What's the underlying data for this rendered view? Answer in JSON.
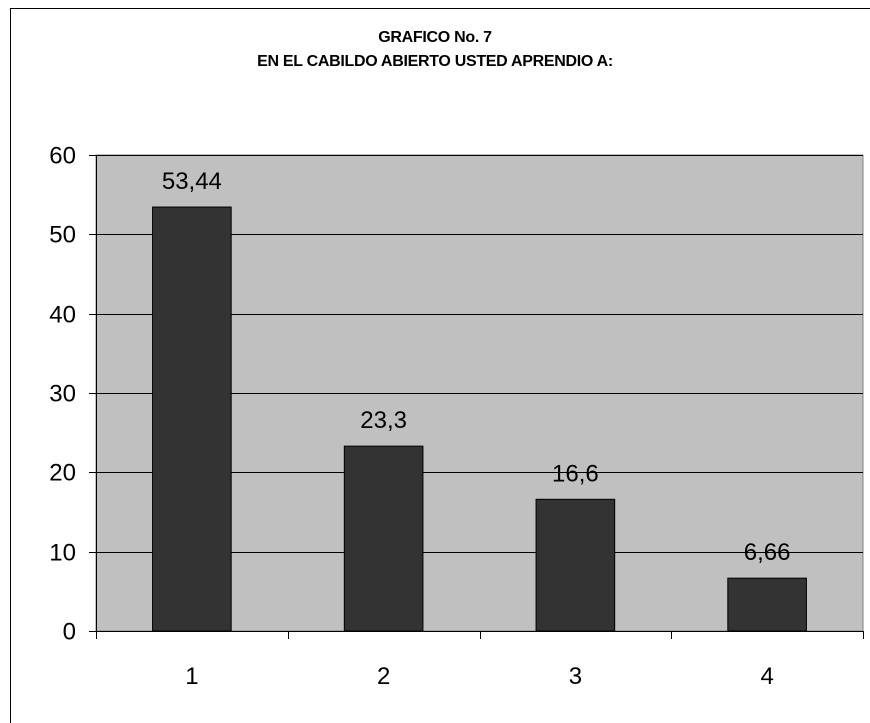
{
  "chart_data": {
    "type": "bar",
    "title_lines": [
      "GRAFICO No. 7",
      "EN EL CABILDO ABIERTO USTED APRENDIO A:"
    ],
    "categories": [
      "1",
      "2",
      "3",
      "4"
    ],
    "values": [
      53.44,
      23.3,
      16.6,
      6.66
    ],
    "data_labels": [
      "53,44",
      "23,3",
      "16,6",
      "6,66"
    ],
    "y_ticks": [
      0,
      10,
      20,
      30,
      40,
      50,
      60
    ],
    "ylim": [
      0,
      60
    ],
    "xlabel": "",
    "ylabel": "",
    "grid": true,
    "legend": "none",
    "colors": {
      "bar": "#333333",
      "plot_area": "#c0c0c0",
      "gridline": "#000000"
    }
  }
}
